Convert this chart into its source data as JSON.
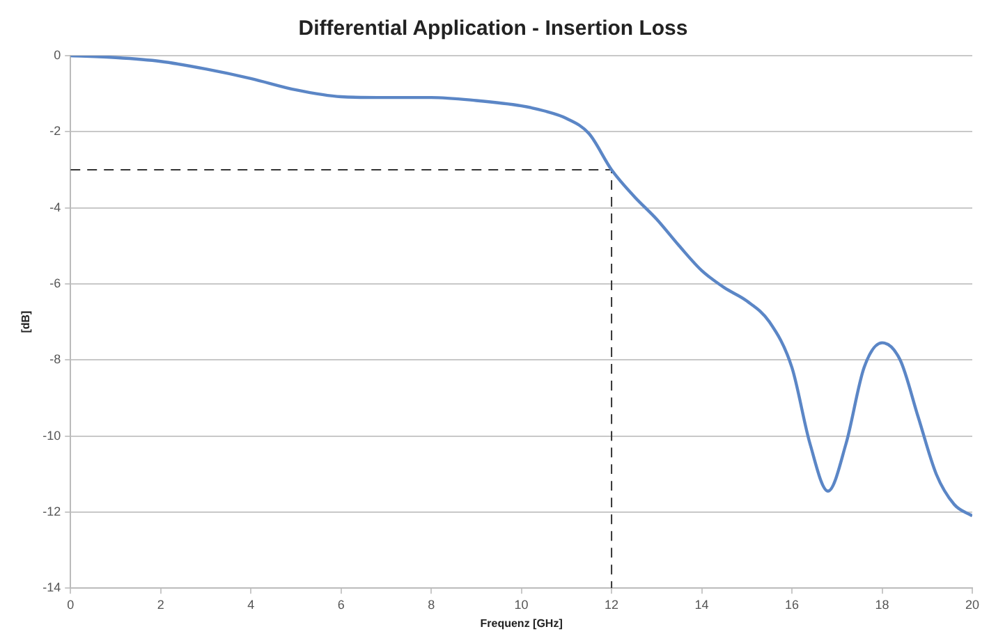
{
  "chart_data": {
    "type": "line",
    "title": "Differential Application - Insertion Loss",
    "xlabel": "Frequenz [GHz]",
    "ylabel": "[dB]",
    "xlim": [
      0,
      20
    ],
    "xticks": [
      0,
      2,
      4,
      6,
      8,
      10,
      12,
      14,
      16,
      18,
      20
    ],
    "ylim": [
      -14,
      0
    ],
    "yticks": [
      -14,
      -12,
      -10,
      -8,
      -6,
      -4,
      -2,
      0
    ],
    "grid": "y",
    "legend": false,
    "marker": "none",
    "series": [
      {
        "color": "#5b86c6",
        "line_style": "solid",
        "x": [
          0,
          1,
          2,
          3,
          4,
          5,
          6,
          7,
          8,
          9,
          10,
          10.5,
          11,
          11.5,
          12,
          12.5,
          13,
          13.5,
          14,
          14.5,
          15,
          15.5,
          16,
          16.4,
          16.8,
          17.2,
          17.6,
          18,
          18.4,
          18.8,
          19.2,
          19.6,
          20
        ],
        "values": [
          0,
          -0.05,
          -0.15,
          -0.35,
          -0.6,
          -0.9,
          -1.08,
          -1.1,
          -1.1,
          -1.18,
          -1.32,
          -1.45,
          -1.65,
          -2.05,
          -3,
          -3.7,
          -4.3,
          -5,
          -5.65,
          -6.1,
          -6.45,
          -7,
          -8.2,
          -10.2,
          -11.45,
          -10.2,
          -8.2,
          -7.55,
          -8,
          -9.5,
          -11,
          -11.8,
          -12.1
        ]
      },
      {
        "color": "#333333",
        "line_style": "dashed",
        "x": [
          0,
          12,
          12
        ],
        "values": [
          -3,
          -3,
          -14
        ]
      }
    ]
  }
}
